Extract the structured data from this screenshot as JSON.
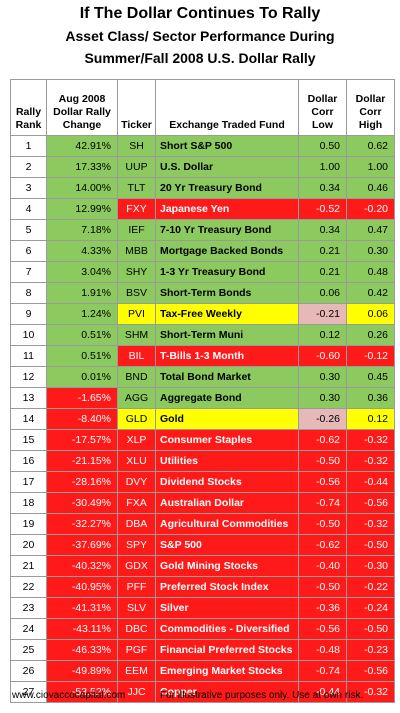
{
  "title": "If The Dollar Continues To Rally",
  "subtitle1": "Asset Class/ Sector Performance During",
  "subtitle2": "Summer/Fall 2008 U.S. Dollar Rally",
  "headers": {
    "rank": [
      "Rally",
      "Rank"
    ],
    "change": [
      "Aug 2008",
      "Dollar Rally",
      "Change"
    ],
    "ticker": "Ticker",
    "fund": "Exchange Traded Fund",
    "low": [
      "Dollar",
      "Corr",
      "Low"
    ],
    "high": [
      "Dollar",
      "Corr",
      "High"
    ]
  },
  "colors": {
    "green": "#8cc95e",
    "red": "#ff1a1a",
    "yellow": "#ffff00",
    "pink": "#e6b8b8"
  },
  "chart_data": {
    "type": "table",
    "columns": [
      "Rally Rank",
      "Aug 2008 Dollar Rally Change",
      "Ticker",
      "Exchange Traded Fund",
      "Dollar Corr Low",
      "Dollar Corr High"
    ],
    "rows": [
      {
        "rank": "1",
        "change": "42.91%",
        "ticker": "SH",
        "fund": "Short S&P 500",
        "low": "0.50",
        "high": "0.62",
        "row": "green",
        "low_bg": "green",
        "high_bg": "green"
      },
      {
        "rank": "2",
        "change": "17.33%",
        "ticker": "UUP",
        "fund": "U.S. Dollar",
        "low": "1.00",
        "high": "1.00",
        "row": "green",
        "low_bg": "green",
        "high_bg": "green"
      },
      {
        "rank": "3",
        "change": "14.00%",
        "ticker": "TLT",
        "fund": "20 Yr Treasury Bond",
        "low": "0.34",
        "high": "0.46",
        "row": "green",
        "low_bg": "green",
        "high_bg": "green"
      },
      {
        "rank": "4",
        "change": "12.99%",
        "ticker": "FXY",
        "fund": "Japanese Yen",
        "low": "-0.52",
        "high": "-0.20",
        "row": "red",
        "change_bg": "green",
        "low_bg": "red",
        "high_bg": "red"
      },
      {
        "rank": "5",
        "change": "7.18%",
        "ticker": "IEF",
        "fund": "7-10 Yr Treasury Bond",
        "low": "0.34",
        "high": "0.47",
        "row": "green",
        "low_bg": "green",
        "high_bg": "green"
      },
      {
        "rank": "6",
        "change": "4.33%",
        "ticker": "MBB",
        "fund": "Mortgage Backed Bonds",
        "low": "0.21",
        "high": "0.30",
        "row": "green",
        "low_bg": "green",
        "high_bg": "green"
      },
      {
        "rank": "7",
        "change": "3.04%",
        "ticker": "SHY",
        "fund": "1-3 Yr Treasury Bond",
        "low": "0.21",
        "high": "0.48",
        "row": "green",
        "low_bg": "green",
        "high_bg": "green"
      },
      {
        "rank": "8",
        "change": "1.91%",
        "ticker": "BSV",
        "fund": "Short-Term Bonds",
        "low": "0.06",
        "high": "0.42",
        "row": "green",
        "low_bg": "green",
        "high_bg": "green"
      },
      {
        "rank": "9",
        "change": "1.24%",
        "ticker": "PVI",
        "fund": "Tax-Free Weekly",
        "low": "-0.21",
        "high": "0.06",
        "row": "yellow",
        "change_bg": "green",
        "low_bg": "pink",
        "high_bg": "yellow"
      },
      {
        "rank": "10",
        "change": "0.51%",
        "ticker": "SHM",
        "fund": "Short-Term Muni",
        "low": "0.12",
        "high": "0.26",
        "row": "green",
        "low_bg": "green",
        "high_bg": "green"
      },
      {
        "rank": "11",
        "change": "0.51%",
        "ticker": "BIL",
        "fund": "T-Bills 1-3 Month",
        "low": "-0.60",
        "high": "-0.12",
        "row": "red",
        "change_bg": "green",
        "low_bg": "red",
        "high_bg": "red"
      },
      {
        "rank": "12",
        "change": "0.01%",
        "ticker": "BND",
        "fund": "Total Bond Market",
        "low": "0.30",
        "high": "0.45",
        "row": "green",
        "low_bg": "green",
        "high_bg": "green"
      },
      {
        "rank": "13",
        "change": "-1.65%",
        "ticker": "AGG",
        "fund": "Aggregate Bond",
        "low": "0.30",
        "high": "0.36",
        "row": "green",
        "change_bg": "red",
        "low_bg": "green",
        "high_bg": "green"
      },
      {
        "rank": "14",
        "change": "-8.40%",
        "ticker": "GLD",
        "fund": "Gold",
        "low": "-0.26",
        "high": "0.12",
        "row": "yellow",
        "change_bg": "red",
        "low_bg": "pink",
        "high_bg": "yellow"
      },
      {
        "rank": "15",
        "change": "-17.57%",
        "ticker": "XLP",
        "fund": "Consumer Staples",
        "low": "-0.62",
        "high": "-0.32",
        "row": "red",
        "low_bg": "red",
        "high_bg": "red"
      },
      {
        "rank": "16",
        "change": "-21.15%",
        "ticker": "XLU",
        "fund": "Utilities",
        "low": "-0.50",
        "high": "-0.32",
        "row": "red",
        "low_bg": "red",
        "high_bg": "red"
      },
      {
        "rank": "17",
        "change": "-28.16%",
        "ticker": "DVY",
        "fund": "Dividend Stocks",
        "low": "-0.56",
        "high": "-0.44",
        "row": "red",
        "low_bg": "red",
        "high_bg": "red"
      },
      {
        "rank": "18",
        "change": "-30.49%",
        "ticker": "FXA",
        "fund": "Australian Dollar",
        "low": "-0.74",
        "high": "-0.56",
        "row": "red",
        "low_bg": "red",
        "high_bg": "red"
      },
      {
        "rank": "19",
        "change": "-32.27%",
        "ticker": "DBA",
        "fund": "Agricultural Commodities",
        "low": "-0.50",
        "high": "-0.32",
        "row": "red",
        "low_bg": "red",
        "high_bg": "red"
      },
      {
        "rank": "20",
        "change": "-37.69%",
        "ticker": "SPY",
        "fund": "S&P 500",
        "low": "-0.62",
        "high": "-0.50",
        "row": "red",
        "low_bg": "red",
        "high_bg": "red"
      },
      {
        "rank": "21",
        "change": "-40.32%",
        "ticker": "GDX",
        "fund": "Gold Mining Stocks",
        "low": "-0.40",
        "high": "-0.30",
        "row": "red",
        "low_bg": "red",
        "high_bg": "red"
      },
      {
        "rank": "22",
        "change": "-40.95%",
        "ticker": "PFF",
        "fund": "Preferred Stock Index",
        "low": "-0.50",
        "high": "-0.22",
        "row": "red",
        "low_bg": "red",
        "high_bg": "red"
      },
      {
        "rank": "23",
        "change": "-41.31%",
        "ticker": "SLV",
        "fund": "Silver",
        "low": "-0.36",
        "high": "-0.24",
        "row": "red",
        "low_bg": "red",
        "high_bg": "red"
      },
      {
        "rank": "24",
        "change": "-43.11%",
        "ticker": "DBC",
        "fund": "Commodities - Diversified",
        "low": "-0.56",
        "high": "-0.50",
        "row": "red",
        "low_bg": "red",
        "high_bg": "red"
      },
      {
        "rank": "25",
        "change": "-46.33%",
        "ticker": "PGF",
        "fund": "Financial Preferred Stocks",
        "low": "-0.48",
        "high": "-0.23",
        "row": "red",
        "low_bg": "red",
        "high_bg": "red"
      },
      {
        "rank": "26",
        "change": "-49.89%",
        "ticker": "EEM",
        "fund": "Emerging Market Stocks",
        "low": "-0.74",
        "high": "-0.56",
        "row": "red",
        "low_bg": "red",
        "high_bg": "red"
      },
      {
        "rank": "27",
        "change": "-53.52%",
        "ticker": "JJC",
        "fund": "Copper",
        "low": "-0.44",
        "high": "-0.32",
        "row": "red",
        "low_bg": "red",
        "high_bg": "red"
      }
    ]
  },
  "footer": {
    "site": "www.ciovaccocapital.com",
    "disclaimer": "For illustrative purposes only.  Use at own risk."
  }
}
